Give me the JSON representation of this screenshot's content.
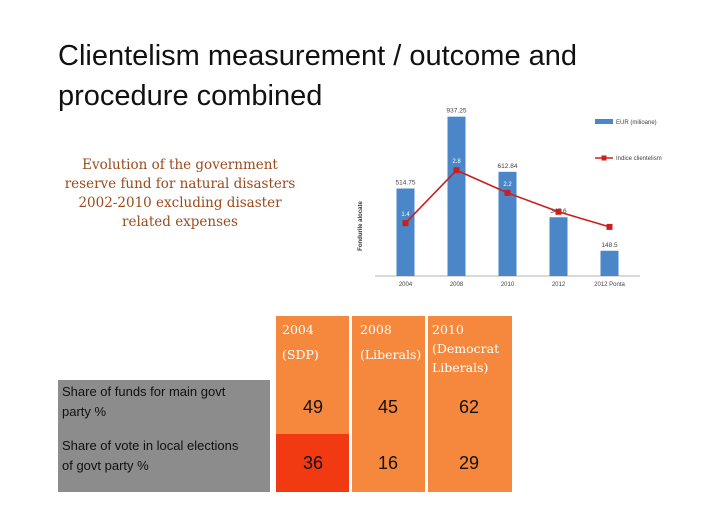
{
  "title": {
    "line1": "Clientelism measurement / outcome and",
    "line2": "procedure combined"
  },
  "caption": {
    "line1": "Evolution of the government",
    "line2": "reserve fund for natural disasters",
    "line3": "2002-2010 excluding disaster",
    "line4": "related expenses"
  },
  "chart_data": {
    "type": "bar",
    "categories": [
      "2004",
      "2008",
      "2010",
      "2012",
      "2012 Ponta"
    ],
    "ylabel": "Fondurile alocate",
    "legend_position": "top-right",
    "grid": false,
    "series": [
      {
        "name": "EUR (milioane)",
        "type": "bar",
        "color": "#4a86c8",
        "values": [
          514.75,
          937.25,
          612.84,
          345.6,
          148.5
        ],
        "labels": [
          "514.75",
          "937.25",
          "612.84",
          "345.6",
          "148.5"
        ]
      },
      {
        "name": "Indice clientelism",
        "type": "line",
        "color": "#c8201e",
        "values": [
          1.4,
          2.8,
          2.2,
          1.7,
          1.3
        ],
        "labels": [
          "1.4",
          "2.8",
          "2.2",
          "1.7",
          "1.3"
        ]
      }
    ],
    "bar_ylim": [
      0,
      1000
    ],
    "line_ylim": [
      0,
      4.5
    ]
  },
  "table": {
    "headers": [
      {
        "line1": "2004",
        "line2": "(SDP)"
      },
      {
        "line1": "2008",
        "line2": "(Liberals)"
      },
      {
        "line1": "2010",
        "line2": "(Democrat",
        "line3": "Liberals)"
      }
    ],
    "rows": [
      {
        "label_line1": "Share of funds for main govt",
        "label_line2": "party %",
        "values": [
          "49",
          "45",
          "62"
        ]
      },
      {
        "label_line1": "Share of vote in local elections",
        "label_line2": "of govt party %",
        "values": [
          "36",
          "16",
          "29"
        ]
      }
    ]
  },
  "colors": {
    "orange": "#f5883c",
    "red": "#f23a12",
    "grey": "#8c8c8c",
    "caption": "#9b4a1c"
  }
}
